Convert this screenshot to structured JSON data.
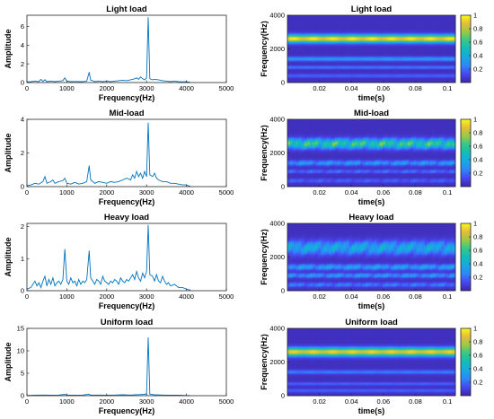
{
  "chart_data": [
    {
      "type": "line",
      "title": "Light load",
      "xlabel": "Frequency(Hz)",
      "ylabel": "Amplitude",
      "xlim": [
        0,
        5000
      ],
      "ylim": [
        0,
        7.2
      ],
      "xticks": [
        0,
        1000,
        2000,
        3000,
        4000,
        5000
      ],
      "xtick_labels": [
        "0",
        "1000",
        "2000",
        "3000",
        "4000",
        "5000"
      ],
      "yticks": [
        0,
        2,
        4,
        6
      ],
      "ytick_labels": [
        "0",
        "2",
        "4",
        "6"
      ],
      "color": "#0072bd",
      "series": [
        {
          "x": [
            0,
            100,
            200,
            300,
            350,
            400,
            450,
            500,
            600,
            700,
            800,
            900,
            950,
            1000,
            1100,
            1200,
            1300,
            1400,
            1500,
            1560,
            1600,
            1650,
            1700,
            1800,
            1900,
            2000,
            2100,
            2200,
            2300,
            2400,
            2500,
            2600,
            2700,
            2750,
            2800,
            2850,
            2900,
            2950,
            3000,
            3040,
            3080,
            3150,
            3200,
            3300,
            3400,
            3500,
            3600,
            3700,
            3800,
            3900,
            4000,
            4050,
            4100
          ],
          "y": [
            0.05,
            0.1,
            0.15,
            0.1,
            0.35,
            0.12,
            0.3,
            0.1,
            0.15,
            0.1,
            0.15,
            0.2,
            0.5,
            0.15,
            0.1,
            0.12,
            0.1,
            0.1,
            0.15,
            1.1,
            0.25,
            0.2,
            0.1,
            0.15,
            0.1,
            0.15,
            0.1,
            0.15,
            0.2,
            0.25,
            0.2,
            0.3,
            0.4,
            0.5,
            0.35,
            0.6,
            0.4,
            0.3,
            0.5,
            7.0,
            0.4,
            0.3,
            0.35,
            0.3,
            0.2,
            0.15,
            0.1,
            0.15,
            0.1,
            0.08,
            0.1,
            0.05,
            0.02
          ]
        }
      ]
    },
    {
      "type": "heatmap",
      "title": "Light load",
      "xlabel": "time(s)",
      "ylabel": "Frequency(Hz)",
      "xlim": [
        0,
        0.105
      ],
      "ylim": [
        0,
        4000
      ],
      "xticks": [
        0.02,
        0.04,
        0.06,
        0.08,
        0.1
      ],
      "xtick_labels": [
        "0.02",
        "0.04",
        "0.06",
        "0.08",
        "0.1"
      ],
      "yticks": [
        0,
        2000,
        4000
      ],
      "ytick_labels": [
        "0",
        "2000",
        "4000"
      ],
      "colorbar": {
        "range": [
          0,
          1
        ],
        "ticks": [
          0.2,
          0.4,
          0.6,
          0.8,
          1
        ],
        "tick_labels": [
          "0.2",
          "0.4",
          "0.6",
          "0.8",
          "1"
        ]
      },
      "bands": [
        {
          "freq": 2600,
          "intensity": 0.95,
          "width_hz": 160
        },
        {
          "freq": 1400,
          "intensity": 0.3,
          "width_hz": 90
        },
        {
          "freq": 900,
          "intensity": 0.2,
          "width_hz": 70
        },
        {
          "freq": 400,
          "intensity": 0.15,
          "width_hz": 80
        }
      ],
      "texture": "smooth"
    },
    {
      "type": "line",
      "title": "Mid-load",
      "xlabel": "Frequency(Hz)",
      "ylabel": "Amplitude",
      "xlim": [
        0,
        5000
      ],
      "ylim": [
        0,
        4
      ],
      "xticks": [
        0,
        1000,
        2000,
        3000,
        4000,
        5000
      ],
      "xtick_labels": [
        "0",
        "1000",
        "2000",
        "3000",
        "4000",
        "5000"
      ],
      "yticks": [
        0,
        2,
        4
      ],
      "ytick_labels": [
        "0",
        "2",
        "4"
      ],
      "color": "#0072bd",
      "series": [
        {
          "x": [
            0,
            100,
            200,
            300,
            400,
            450,
            500,
            600,
            650,
            700,
            800,
            900,
            950,
            1000,
            1100,
            1200,
            1300,
            1400,
            1500,
            1560,
            1600,
            1650,
            1700,
            1800,
            1900,
            2000,
            2100,
            2200,
            2300,
            2400,
            2500,
            2600,
            2650,
            2700,
            2750,
            2800,
            2850,
            2900,
            2950,
            3000,
            3040,
            3080,
            3150,
            3200,
            3250,
            3300,
            3400,
            3500,
            3600,
            3700,
            3800,
            3900,
            4000,
            4050,
            4100
          ],
          "y": [
            0.05,
            0.1,
            0.2,
            0.15,
            0.3,
            0.6,
            0.2,
            0.3,
            0.4,
            0.2,
            0.3,
            0.35,
            0.5,
            0.2,
            0.15,
            0.25,
            0.15,
            0.2,
            0.3,
            1.25,
            0.4,
            0.3,
            0.2,
            0.3,
            0.25,
            0.2,
            0.3,
            0.25,
            0.3,
            0.4,
            0.5,
            0.4,
            0.7,
            0.5,
            0.9,
            0.6,
            0.8,
            0.5,
            0.9,
            0.6,
            3.8,
            0.7,
            0.6,
            0.8,
            0.5,
            0.4,
            0.3,
            0.3,
            0.2,
            0.2,
            0.15,
            0.1,
            0.1,
            0.05,
            0.02
          ]
        }
      ]
    },
    {
      "type": "heatmap",
      "title": "Mid-load",
      "xlabel": "time(s)",
      "ylabel": "Frequency(Hz)",
      "xlim": [
        0,
        0.105
      ],
      "ylim": [
        0,
        4000
      ],
      "xticks": [
        0.02,
        0.04,
        0.06,
        0.08,
        0.1
      ],
      "xtick_labels": [
        "0.02",
        "0.04",
        "0.06",
        "0.08",
        "0.1"
      ],
      "yticks": [
        0,
        2000,
        4000
      ],
      "ytick_labels": [
        "0",
        "2000",
        "4000"
      ],
      "colorbar": {
        "range": [
          0,
          1
        ],
        "ticks": [
          0.2,
          0.4,
          0.6,
          0.8,
          1
        ],
        "tick_labels": [
          "0.2",
          "0.4",
          "0.6",
          "0.8",
          "1"
        ]
      },
      "bands": [
        {
          "freq": 2550,
          "intensity": 0.75,
          "width_hz": 200
        },
        {
          "freq": 1400,
          "intensity": 0.35,
          "width_hz": 110
        },
        {
          "freq": 900,
          "intensity": 0.22,
          "width_hz": 80
        },
        {
          "freq": 350,
          "intensity": 0.18,
          "width_hz": 90
        }
      ],
      "texture": "dotted"
    },
    {
      "type": "line",
      "title": "Heavy load",
      "xlabel": "Frequency(Hz)",
      "ylabel": "Amplitude",
      "xlim": [
        0,
        5000
      ],
      "ylim": [
        0,
        2.1
      ],
      "xticks": [
        0,
        1000,
        2000,
        3000,
        4000,
        5000
      ],
      "xtick_labels": [
        "0",
        "1000",
        "2000",
        "3000",
        "4000",
        "5000"
      ],
      "yticks": [
        0,
        1,
        2
      ],
      "ytick_labels": [
        "0",
        "1",
        "2"
      ],
      "color": "#0072bd",
      "series": [
        {
          "x": [
            0,
            100,
            200,
            250,
            300,
            350,
            400,
            450,
            500,
            550,
            600,
            650,
            700,
            750,
            800,
            850,
            900,
            950,
            1000,
            1050,
            1100,
            1150,
            1200,
            1250,
            1300,
            1350,
            1400,
            1450,
            1500,
            1560,
            1600,
            1650,
            1700,
            1750,
            1800,
            1850,
            1900,
            1950,
            2000,
            2050,
            2100,
            2150,
            2200,
            2250,
            2300,
            2350,
            2400,
            2450,
            2500,
            2550,
            2600,
            2650,
            2700,
            2750,
            2800,
            2850,
            2900,
            2950,
            3000,
            3040,
            3080,
            3150,
            3200,
            3250,
            3300,
            3350,
            3400,
            3450,
            3500,
            3550,
            3600,
            3700,
            3800,
            3900,
            4000,
            4100
          ],
          "y": [
            0.05,
            0.1,
            0.3,
            0.15,
            0.25,
            0.1,
            0.3,
            0.45,
            0.15,
            0.35,
            0.2,
            0.4,
            0.15,
            0.25,
            0.3,
            0.2,
            0.35,
            1.3,
            0.3,
            0.2,
            0.4,
            0.25,
            0.3,
            0.15,
            0.35,
            0.2,
            0.3,
            0.25,
            0.35,
            1.25,
            0.4,
            0.3,
            0.2,
            0.35,
            0.3,
            0.2,
            0.45,
            0.3,
            0.25,
            0.2,
            0.3,
            0.25,
            0.35,
            0.3,
            0.2,
            0.4,
            0.3,
            0.25,
            0.35,
            0.3,
            0.4,
            0.5,
            0.35,
            0.6,
            0.4,
            0.3,
            0.55,
            0.4,
            0.6,
            2.05,
            0.5,
            0.45,
            0.3,
            0.5,
            0.3,
            0.25,
            0.45,
            0.3,
            0.2,
            0.25,
            0.15,
            0.2,
            0.1,
            0.1,
            0.05,
            0.02
          ]
        }
      ]
    },
    {
      "type": "heatmap",
      "title": "Heavy load",
      "xlabel": "time(s)",
      "ylabel": "Frequency(Hz)",
      "xlim": [
        0,
        0.105
      ],
      "ylim": [
        0,
        4000
      ],
      "xticks": [
        0.02,
        0.04,
        0.06,
        0.08,
        0.1
      ],
      "xtick_labels": [
        "0.02",
        "0.04",
        "0.06",
        "0.08",
        "0.1"
      ],
      "yticks": [
        0,
        2000,
        4000
      ],
      "ytick_labels": [
        "0",
        "2000",
        "4000"
      ],
      "colorbar": {
        "range": [
          0,
          1
        ],
        "ticks": [
          0.2,
          0.4,
          0.6,
          0.8,
          1
        ],
        "tick_labels": [
          "0.2",
          "0.4",
          "0.6",
          "0.8",
          "1"
        ]
      },
      "bands": [
        {
          "freq": 2550,
          "intensity": 0.45,
          "width_hz": 280
        },
        {
          "freq": 1400,
          "intensity": 0.4,
          "width_hz": 120
        },
        {
          "freq": 900,
          "intensity": 0.35,
          "width_hz": 100
        },
        {
          "freq": 350,
          "intensity": 0.25,
          "width_hz": 100
        }
      ],
      "texture": "dotted"
    },
    {
      "type": "line",
      "title": "Uniform load",
      "xlabel": "Frequency(Hz)",
      "ylabel": "Amplitude",
      "xlim": [
        0,
        5000
      ],
      "ylim": [
        0,
        15
      ],
      "xticks": [
        0,
        1000,
        2000,
        3000,
        4000,
        5000
      ],
      "xtick_labels": [
        "0",
        "1000",
        "2000",
        "3000",
        "4000",
        "5000"
      ],
      "yticks": [
        0,
        5,
        10,
        15
      ],
      "ytick_labels": [
        "0",
        "5",
        "10",
        "15"
      ],
      "color": "#0072bd",
      "series": [
        {
          "x": [
            0,
            200,
            400,
            600,
            800,
            950,
            1000,
            1200,
            1400,
            1560,
            1600,
            1800,
            2000,
            2200,
            2400,
            2600,
            2800,
            2950,
            3000,
            3040,
            3080,
            3200,
            3400,
            3600,
            3800,
            4000,
            4100
          ],
          "y": [
            0.05,
            0.1,
            0.15,
            0.1,
            0.15,
            0.3,
            0.1,
            0.1,
            0.15,
            0.35,
            0.1,
            0.15,
            0.1,
            0.15,
            0.2,
            0.15,
            0.25,
            0.3,
            0.4,
            13.0,
            0.35,
            0.2,
            0.15,
            0.1,
            0.1,
            0.05,
            0.02
          ]
        }
      ]
    },
    {
      "type": "heatmap",
      "title": "Uniform load",
      "xlabel": "time(s)",
      "ylabel": "Frequency(Hz)",
      "xlim": [
        0,
        0.105
      ],
      "ylim": [
        0,
        4000
      ],
      "xticks": [
        0.02,
        0.04,
        0.06,
        0.08,
        0.1
      ],
      "xtick_labels": [
        "0.02",
        "0.04",
        "0.06",
        "0.08",
        "0.1"
      ],
      "yticks": [
        0,
        2000,
        4000
      ],
      "ytick_labels": [
        "0",
        "2000",
        "4000"
      ],
      "colorbar": {
        "range": [
          0,
          1
        ],
        "ticks": [
          0.2,
          0.4,
          0.6,
          0.8,
          1
        ],
        "tick_labels": [
          "0.2",
          "0.4",
          "0.6",
          "0.8",
          "1"
        ]
      },
      "bands": [
        {
          "freq": 2600,
          "intensity": 0.9,
          "width_hz": 170
        },
        {
          "freq": 1400,
          "intensity": 0.2,
          "width_hz": 90
        },
        {
          "freq": 700,
          "intensity": 0.15,
          "width_hz": 70
        },
        {
          "freq": 300,
          "intensity": 0.15,
          "width_hz": 80
        }
      ],
      "texture": "smooth"
    }
  ]
}
